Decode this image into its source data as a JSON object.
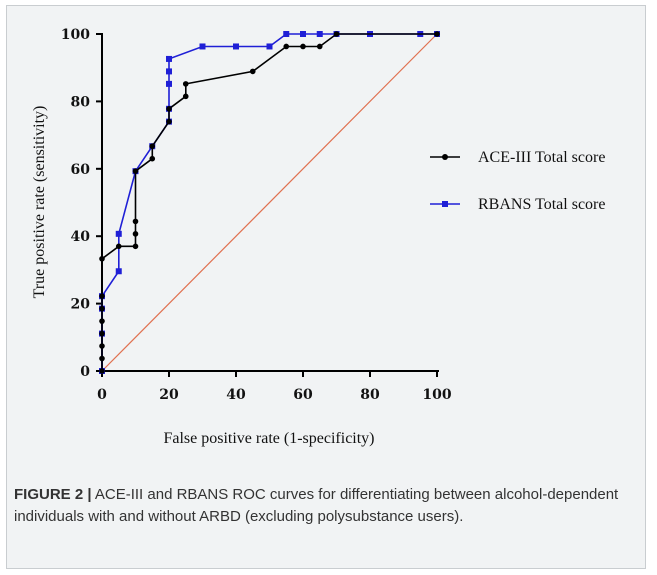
{
  "chart_data": {
    "type": "line",
    "xlabel": "False positive rate (1-specificity)",
    "ylabel": "True positive rate (sensitivity)",
    "xlim": [
      0,
      100
    ],
    "ylim": [
      0,
      100
    ],
    "xticks": [
      "0",
      "20",
      "40",
      "60",
      "80",
      "100"
    ],
    "yticks": [
      "0",
      "20",
      "40",
      "60",
      "80",
      "100"
    ],
    "legend_position": "right",
    "series": [
      {
        "name": "ACE-III Total score",
        "color": "#000000",
        "marker": "circle",
        "points": [
          [
            0,
            0
          ],
          [
            0,
            3.7
          ],
          [
            0,
            7.4
          ],
          [
            0,
            11.1
          ],
          [
            0,
            14.8
          ],
          [
            0,
            18.5
          ],
          [
            0,
            22.2
          ],
          [
            0,
            33.3
          ],
          [
            5,
            37
          ],
          [
            10,
            37
          ],
          [
            10,
            40.7
          ],
          [
            10,
            44.4
          ],
          [
            10,
            59.3
          ],
          [
            15,
            63
          ],
          [
            15,
            66.7
          ],
          [
            20,
            74
          ],
          [
            20,
            77.8
          ],
          [
            25,
            81.5
          ],
          [
            25,
            85.2
          ],
          [
            45,
            88.9
          ],
          [
            55,
            96.3
          ],
          [
            60,
            96.3
          ],
          [
            65,
            96.3
          ],
          [
            70,
            100
          ],
          [
            100,
            100
          ]
        ]
      },
      {
        "name": "RBANS Total score",
        "color": "#1f1fd6",
        "marker": "square",
        "points": [
          [
            0,
            0
          ],
          [
            0,
            11.1
          ],
          [
            0,
            18.5
          ],
          [
            0,
            22.2
          ],
          [
            5,
            29.6
          ],
          [
            5,
            40.7
          ],
          [
            10,
            59.3
          ],
          [
            15,
            66.7
          ],
          [
            20,
            74
          ],
          [
            20,
            77.8
          ],
          [
            20,
            85.2
          ],
          [
            20,
            88.9
          ],
          [
            20,
            92.6
          ],
          [
            30,
            96.3
          ],
          [
            40,
            96.3
          ],
          [
            50,
            96.3
          ],
          [
            55,
            100
          ],
          [
            60,
            100
          ],
          [
            65,
            100
          ],
          [
            70,
            100
          ],
          [
            80,
            100
          ],
          [
            95,
            100
          ],
          [
            100,
            100
          ]
        ]
      },
      {
        "name": "",
        "color": "#e0704f",
        "marker": "none",
        "points": [
          [
            0,
            0
          ],
          [
            100,
            100
          ]
        ]
      }
    ]
  },
  "caption": {
    "label": "FIGURE 2 |",
    "text": " ACE-III and RBANS ROC curves for differentiating between alcohol-dependent individuals with and without ARBD (excluding polysubstance users)."
  }
}
